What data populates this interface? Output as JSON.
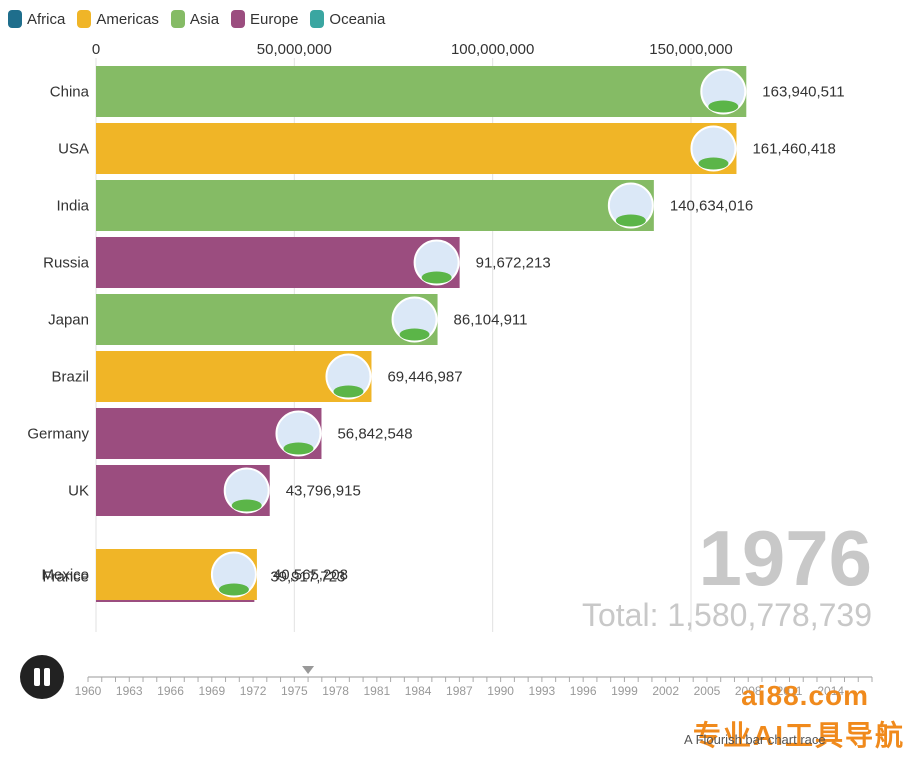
{
  "legend": [
    {
      "label": "Africa",
      "color": "#1f6e8c"
    },
    {
      "label": "Americas",
      "color": "#f0b527"
    },
    {
      "label": "Asia",
      "color": "#85bb65"
    },
    {
      "label": "Europe",
      "color": "#9b4d7f"
    },
    {
      "label": "Oceania",
      "color": "#3aa6a1"
    }
  ],
  "chart_data": {
    "type": "bar",
    "orientation": "horizontal",
    "x_ticks": [
      "0",
      "50,000,000",
      "100,000,000",
      "150,000,000"
    ],
    "xlim": [
      0,
      210000000
    ],
    "year": "1976",
    "total": "Total: 1,580,778,739",
    "categories": [
      "China",
      "USA",
      "India",
      "Russia",
      "Japan",
      "Brazil",
      "Germany",
      "UK",
      "Mexico",
      "France"
    ],
    "values": [
      163940511,
      161460418,
      140634016,
      91672213,
      86104911,
      69446987,
      56842548,
      43796915,
      40565208,
      39917723
    ],
    "value_labels": [
      "163,940,511",
      "161,460,418",
      "140,634,016",
      "91,672,213",
      "86,104,911",
      "69,446,987",
      "56,842,548",
      "43,796,915",
      "40,565,208",
      "39,917,723"
    ],
    "regions": [
      "Asia",
      "Americas",
      "Asia",
      "Europe",
      "Asia",
      "Americas",
      "Europe",
      "Europe",
      "Americas",
      "Europe"
    ],
    "colors": {
      "Africa": "#1f6e8c",
      "Americas": "#f0b527",
      "Asia": "#85bb65",
      "Europe": "#9b4d7f",
      "Oceania": "#3aa6a1"
    }
  },
  "timeline": {
    "years": [
      "1960",
      "1963",
      "1966",
      "1969",
      "1972",
      "1975",
      "1978",
      "1981",
      "1984",
      "1987",
      "1990",
      "1993",
      "1996",
      "1999",
      "2002",
      "2005",
      "2008",
      "2011",
      "2014"
    ],
    "current": 1976,
    "start": 1960,
    "end": 2017
  },
  "watermark": {
    "en": "ai88.com",
    "cn": "专业AI工具导航"
  },
  "attribution": "A Flourish bar chart race"
}
